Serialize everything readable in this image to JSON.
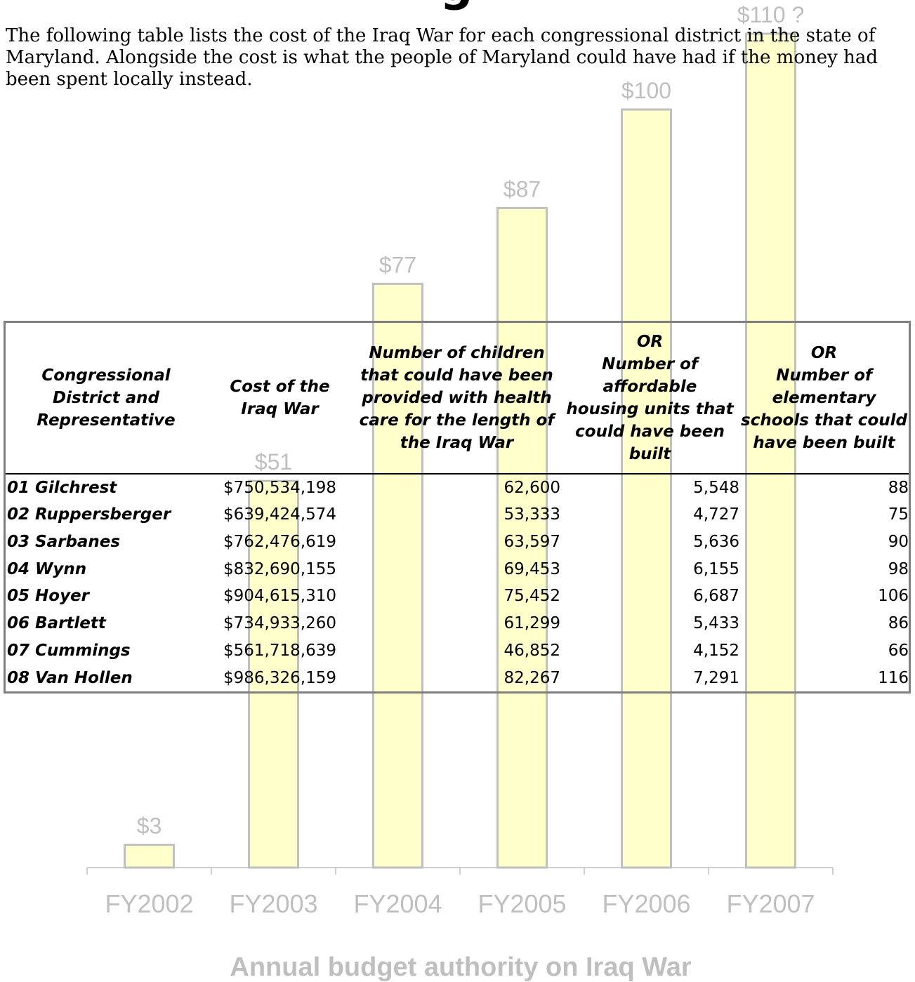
{
  "heading_fragment": "g",
  "intro": "The following table lists the cost of the Iraq War for each congressional district in the state of Maryland.  Alongside the cost is what the people of Maryland could have had if the money had been spent locally instead.",
  "table": {
    "headers": [
      [
        "Congressional",
        "District and",
        "Representative"
      ],
      [
        "Cost of the",
        "Iraq War"
      ],
      [
        "Number of children",
        "that could have been",
        "provided with health",
        "care for the length of",
        "the Iraq War"
      ],
      [
        "OR",
        "Number of",
        "affordable",
        "housing units that",
        "could have been",
        "built"
      ],
      [
        "OR",
        "Number of",
        "elementary",
        "schools that could",
        "have been built"
      ]
    ],
    "rows": [
      {
        "rep": "01 Gilchrest",
        "cost": "$750,534,198",
        "children": "62,600",
        "housing": "5,548",
        "schools": "88"
      },
      {
        "rep": "02 Ruppersberger",
        "cost": "$639,424,574",
        "children": "53,333",
        "housing": "4,727",
        "schools": "75"
      },
      {
        "rep": "03 Sarbanes",
        "cost": "$762,476,619",
        "children": "63,597",
        "housing": "5,636",
        "schools": "90"
      },
      {
        "rep": "04 Wynn",
        "cost": "$832,690,155",
        "children": "69,453",
        "housing": "6,155",
        "schools": "98"
      },
      {
        "rep": "05 Hoyer",
        "cost": "$904,615,310",
        "children": "75,452",
        "housing": "6,687",
        "schools": "106"
      },
      {
        "rep": "06 Bartlett",
        "cost": "$734,933,260",
        "children": "61,299",
        "housing": "5,433",
        "schools": "86"
      },
      {
        "rep": "07 Cummings",
        "cost": "$561,718,639",
        "children": "46,852",
        "housing": "4,152",
        "schools": "66"
      },
      {
        "rep": "08 Van Hollen",
        "cost": "$986,326,159",
        "children": "82,267",
        "housing": "7,291",
        "schools": "116"
      }
    ]
  },
  "chart_data": {
    "type": "bar",
    "title": "Annual budget authority on Iraq War",
    "categories": [
      "FY2002",
      "FY2003",
      "FY2004",
      "FY2005",
      "FY2006",
      "FY2007"
    ],
    "values": [
      3,
      51,
      77,
      87,
      100,
      110
    ],
    "data_labels": [
      "$3",
      "$51",
      "$77",
      "$87",
      "$100",
      "$110 ?"
    ],
    "colors": {
      "bar_fill": "#ffffcc",
      "bar_stroke": "#c0c0c0",
      "text": "#bfbfbf",
      "axis": "#bfbfbf"
    }
  }
}
